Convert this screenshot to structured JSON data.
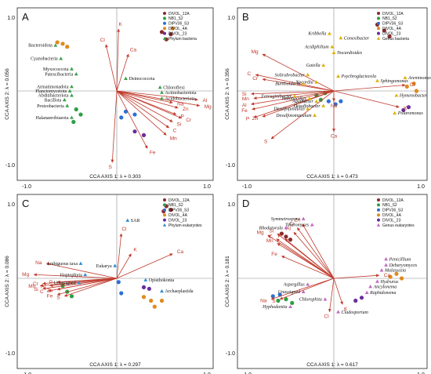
{
  "chart_data": [
    {
      "type": "scatter",
      "panel_label": "A",
      "xlabel": "CCA AXIS 1: λ = 0.303",
      "ylabel": "CCA AXIS 2: λ = 0.056",
      "xlim": [
        -1.0,
        1.0
      ],
      "ylim": [
        -1.0,
        1.0
      ],
      "ticks": {
        "xmin": "-1.0",
        "xmax": "1.0",
        "ymin": "-1.0",
        "ymax": "1.0"
      },
      "legend": [
        {
          "name": "DIVOL_12A",
          "color": "#8b2a2a",
          "marker": "circle"
        },
        {
          "name": "NB1_S2",
          "color": "#2e9e44",
          "marker": "circle"
        },
        {
          "name": "DIPV36_S3",
          "color": "#2f6fd1",
          "marker": "circle"
        },
        {
          "name": "DIVOL_4A",
          "color": "#e08a1e",
          "marker": "circle"
        },
        {
          "name": "DIVOL_23",
          "color": "#6a2d9c",
          "marker": "circle"
        },
        {
          "name": "Phylum bacteria",
          "color": "#3aa04a",
          "marker": "triangle"
        }
      ],
      "taxa_marker": "triangle",
      "taxa_color": "#3aa04a",
      "taxa_italic": false,
      "taxa": [
        {
          "name": "Bacteroidota",
          "x": -0.68,
          "y": 0.62
        },
        {
          "name": "Cyanobacteria",
          "x": -0.62,
          "y": 0.44
        },
        {
          "name": "Myxococcota",
          "x": -0.5,
          "y": 0.3
        },
        {
          "name": "Patescibacteria",
          "x": -0.45,
          "y": 0.23
        },
        {
          "name": "Armatimonadota",
          "x": -0.5,
          "y": 0.06
        },
        {
          "name": "Planctomycetota",
          "x": -0.52,
          "y": 0.0
        },
        {
          "name": "Abditibacteriota",
          "x": -0.5,
          "y": -0.06
        },
        {
          "name": "Bacillota",
          "x": -0.58,
          "y": -0.12
        },
        {
          "name": "Proteobacteria",
          "x": -0.55,
          "y": -0.2
        },
        {
          "name": "Halanaerobiaeota",
          "x": -0.5,
          "y": -0.36
        },
        {
          "name": "Deinococcota",
          "x": 0.1,
          "y": 0.17
        },
        {
          "name": "Chloroflexi",
          "x": 0.48,
          "y": 0.05
        },
        {
          "name": "Actinobacteriota",
          "x": 0.5,
          "y": -0.02
        },
        {
          "name": "Acidobacteriota",
          "x": 0.5,
          "y": -0.1
        }
      ],
      "samples": [
        {
          "x": -0.66,
          "y": 0.66,
          "c": "#e08a1e"
        },
        {
          "x": -0.6,
          "y": 0.64,
          "c": "#e08a1e"
        },
        {
          "x": -0.55,
          "y": 0.6,
          "c": "#e08a1e"
        },
        {
          "x": 0.62,
          "y": 0.85,
          "c": "#e08a1e"
        },
        {
          "x": 0.6,
          "y": 0.77,
          "c": "#8b2a2a"
        },
        {
          "x": 0.55,
          "y": 0.7,
          "c": "#8b2a2a"
        },
        {
          "x": 0.5,
          "y": 0.8,
          "c": "#8b2a2a"
        },
        {
          "x": 0.1,
          "y": -0.28,
          "c": "#2f6fd1"
        },
        {
          "x": 0.2,
          "y": -0.32,
          "c": "#2f6fd1"
        },
        {
          "x": 0.05,
          "y": -0.36,
          "c": "#2f6fd1"
        },
        {
          "x": -0.45,
          "y": -0.25,
          "c": "#2e9e44"
        },
        {
          "x": -0.4,
          "y": -0.32,
          "c": "#2e9e44"
        },
        {
          "x": -0.48,
          "y": -0.42,
          "c": "#2e9e44"
        },
        {
          "x": 0.2,
          "y": -0.55,
          "c": "#6a2d9c"
        },
        {
          "x": 0.3,
          "y": -0.6,
          "c": "#6a2d9c"
        }
      ],
      "vectors": [
        {
          "name": "K",
          "x": 0.02,
          "y": 0.84
        },
        {
          "name": "Cl",
          "x": -0.12,
          "y": 0.63
        },
        {
          "name": "Ca",
          "x": 0.13,
          "y": 0.5
        },
        {
          "name": "Na",
          "x": 0.62,
          "y": -0.16
        },
        {
          "name": "Al",
          "x": 0.9,
          "y": -0.12
        },
        {
          "name": "Zn",
          "x": 0.68,
          "y": -0.23
        },
        {
          "name": "Mg",
          "x": 0.92,
          "y": -0.2
        },
        {
          "name": "P",
          "x": 0.66,
          "y": -0.32
        },
        {
          "name": "Cr",
          "x": 0.72,
          "y": -0.37
        },
        {
          "name": "Si",
          "x": 0.62,
          "y": -0.42
        },
        {
          "name": "C",
          "x": 0.58,
          "y": -0.5
        },
        {
          "name": "Mn",
          "x": 0.55,
          "y": -0.6
        },
        {
          "name": "Fe",
          "x": 0.34,
          "y": -0.78
        },
        {
          "name": "S",
          "x": -0.05,
          "y": -0.97
        }
      ]
    },
    {
      "type": "scatter",
      "panel_label": "B",
      "xlabel": "CCA AXIS 1: λ = 0.473",
      "ylabel": "CCA AXIS 2: λ = 0.356",
      "xlim": [
        -1.0,
        1.0
      ],
      "ylim": [
        -1.0,
        1.0
      ],
      "ticks": {
        "xmin": "-1.0",
        "xmax": "1.0",
        "ymin": "-1.0",
        "ymax": "1.0"
      },
      "legend": [
        {
          "name": "DIVOL_12A",
          "color": "#8b2a2a",
          "marker": "circle"
        },
        {
          "name": "NB1_S2",
          "color": "#2e9e44",
          "marker": "circle"
        },
        {
          "name": "DIPV36_S3",
          "color": "#2f6fd1",
          "marker": "circle"
        },
        {
          "name": "DIVOL_4A",
          "color": "#e08a1e",
          "marker": "circle"
        },
        {
          "name": "DIVOL_23",
          "color": "#6a2d9c",
          "marker": "circle"
        },
        {
          "name": "Genus bacteria",
          "color": "#e0b000",
          "marker": "triangle"
        }
      ],
      "taxa_marker": "triangle",
      "taxa_color": "#e0b000",
      "taxa_italic": true,
      "taxa": [
        {
          "name": "Kribbella",
          "x": -0.05,
          "y": 0.78
        },
        {
          "name": "Conexibacter",
          "x": 0.08,
          "y": 0.72
        },
        {
          "name": "Acidiphilium",
          "x": -0.02,
          "y": 0.6
        },
        {
          "name": "Nocardioides",
          "x": 0.0,
          "y": 0.52
        },
        {
          "name": "Gaiella",
          "x": -0.12,
          "y": 0.35
        },
        {
          "name": "Solirubrobacter",
          "x": -0.3,
          "y": 0.22
        },
        {
          "name": "Psychroglaciecola",
          "x": 0.05,
          "y": 0.2
        },
        {
          "name": "Nocardia",
          "x": -0.2,
          "y": 0.12
        },
        {
          "name": "Burkholderia",
          "x": -0.35,
          "y": 0.1
        },
        {
          "name": "Sphingomonas",
          "x": 0.5,
          "y": 0.14
        },
        {
          "name": "Arenimonas",
          "x": 0.82,
          "y": 0.18
        },
        {
          "name": "Ferruginibacter",
          "x": -0.45,
          "y": -0.07
        },
        {
          "name": "Hymenobacter",
          "x": 0.72,
          "y": -0.06
        },
        {
          "name": "Halobacillus",
          "x": -0.28,
          "y": -0.1
        },
        {
          "name": "Aquibacter",
          "x": -0.2,
          "y": -0.14
        },
        {
          "name": "Desulfobacter",
          "x": -0.12,
          "y": -0.2
        },
        {
          "name": "Desulfofundulus",
          "x": -0.3,
          "y": -0.24
        },
        {
          "name": "Desulfotomaculum",
          "x": -0.22,
          "y": -0.33
        },
        {
          "name": "Polaromonas",
          "x": 0.7,
          "y": -0.3
        }
      ],
      "samples": [
        {
          "x": 0.5,
          "y": 0.9,
          "c": "#8b2a2a"
        },
        {
          "x": 0.58,
          "y": 0.82,
          "c": "#8b2a2a"
        },
        {
          "x": 0.64,
          "y": 0.74,
          "c": "#8b2a2a"
        },
        {
          "x": 0.84,
          "y": 0.06,
          "c": "#e08a1e"
        },
        {
          "x": 0.92,
          "y": 0.1,
          "c": "#e08a1e"
        },
        {
          "x": 0.95,
          "y": 0.0,
          "c": "#e08a1e"
        },
        {
          "x": -0.06,
          "y": -0.14,
          "c": "#2f6fd1"
        },
        {
          "x": 0.02,
          "y": -0.18,
          "c": "#2f6fd1"
        },
        {
          "x": 0.08,
          "y": -0.14,
          "c": "#2f6fd1"
        },
        {
          "x": -0.2,
          "y": -0.06,
          "c": "#2e9e44"
        },
        {
          "x": -0.15,
          "y": -0.12,
          "c": "#2e9e44"
        },
        {
          "x": -0.1,
          "y": -0.03,
          "c": "#2e9e44"
        },
        {
          "x": 0.86,
          "y": -0.22,
          "c": "#6a2d9c"
        },
        {
          "x": 0.8,
          "y": -0.26,
          "c": "#6a2d9c"
        }
      ],
      "vectors": [
        {
          "name": "Mg",
          "x": -0.82,
          "y": 0.5
        },
        {
          "name": "C",
          "x": -0.9,
          "y": 0.22
        },
        {
          "name": "Cr",
          "x": -0.82,
          "y": 0.16
        },
        {
          "name": "Si",
          "x": -0.95,
          "y": -0.04
        },
        {
          "name": "Mn",
          "x": -0.92,
          "y": -0.1
        },
        {
          "name": "Al",
          "x": -0.95,
          "y": -0.18
        },
        {
          "name": "Fe",
          "x": -0.94,
          "y": -0.25
        },
        {
          "name": "P",
          "x": -0.92,
          "y": -0.36
        },
        {
          "name": "Zn",
          "x": -0.82,
          "y": -0.35
        },
        {
          "name": "S",
          "x": -0.72,
          "y": -0.65
        },
        {
          "name": "Cl",
          "x": 0.82,
          "y": 0.08
        },
        {
          "name": "K",
          "x": 0.75,
          "y": -0.22
        },
        {
          "name": "Na",
          "x": 0.0,
          "y": -0.14
        },
        {
          "name": "Ca",
          "x": 0.0,
          "y": -0.55
        }
      ]
    },
    {
      "type": "scatter",
      "panel_label": "C",
      "xlabel": "CCA AXIS 1: λ = 0.297",
      "ylabel": "CCA AXIS 2: λ = 0.086",
      "xlim": [
        -1.0,
        1.0
      ],
      "ylim": [
        -1.0,
        1.0
      ],
      "ticks": {
        "xmin": "-1.0",
        "xmax": "1.0",
        "ymin": "-1.0",
        "ymax": "1.0"
      },
      "legend": [
        {
          "name": "DIVOL_12A",
          "color": "#8b2a2a",
          "marker": "circle"
        },
        {
          "name": "NB1_S2",
          "color": "#2e9e44",
          "marker": "circle"
        },
        {
          "name": "DIPV36_S3",
          "color": "#2f6fd1",
          "marker": "circle"
        },
        {
          "name": "DIVOL_4A",
          "color": "#e08a1e",
          "marker": "circle"
        },
        {
          "name": "DIVOL_23",
          "color": "#6a2d9c",
          "marker": "circle"
        },
        {
          "name": "Phylum eukaryotes",
          "color": "#2f8fd6",
          "marker": "triangle"
        }
      ],
      "taxa_marker": "triangle",
      "taxa_color": "#2f8fd6",
      "taxa_italic": false,
      "taxa": [
        {
          "name": "SAR",
          "x": 0.12,
          "y": 0.78
        },
        {
          "name": "Ambiguous taxa",
          "x": -0.4,
          "y": 0.2
        },
        {
          "name": "Eukarya",
          "x": -0.02,
          "y": 0.17
        },
        {
          "name": "Haptophyta",
          "x": -0.35,
          "y": 0.05
        },
        {
          "name": "Unassigned",
          "x": -0.42,
          "y": -0.06
        },
        {
          "name": "Opisthokonta",
          "x": 0.32,
          "y": -0.02
        },
        {
          "name": "Archaeplastida",
          "x": 0.5,
          "y": -0.17
        }
      ],
      "samples": [
        {
          "x": 0.55,
          "y": 0.97,
          "c": "#8b2a2a"
        },
        {
          "x": 0.6,
          "y": 0.92,
          "c": "#8b2a2a"
        },
        {
          "x": 0.52,
          "y": 0.9,
          "c": "#8b2a2a"
        },
        {
          "x": 0.3,
          "y": -0.25,
          "c": "#e08a1e"
        },
        {
          "x": 0.38,
          "y": -0.3,
          "c": "#e08a1e"
        },
        {
          "x": 0.42,
          "y": -0.38,
          "c": "#e08a1e"
        },
        {
          "x": 0.5,
          "y": -0.3,
          "c": "#e08a1e"
        },
        {
          "x": 0.05,
          "y": -0.2,
          "c": "#2f6fd1"
        },
        {
          "x": 0.02,
          "y": -0.05,
          "c": "#2f6fd1"
        },
        {
          "x": -0.6,
          "y": -0.1,
          "c": "#2e9e44"
        },
        {
          "x": -0.55,
          "y": -0.18,
          "c": "#2e9e44"
        },
        {
          "x": -0.5,
          "y": -0.24,
          "c": "#2e9e44"
        },
        {
          "x": 0.3,
          "y": -0.12,
          "c": "#6a2d9c"
        },
        {
          "x": 0.36,
          "y": -0.14,
          "c": "#6a2d9c"
        }
      ],
      "vectors": [
        {
          "name": "Cl",
          "x": 0.05,
          "y": 0.6
        },
        {
          "name": "K",
          "x": 0.16,
          "y": 0.33
        },
        {
          "name": "Ca",
          "x": 0.62,
          "y": 0.33
        },
        {
          "name": "Na",
          "x": -0.78,
          "y": 0.2
        },
        {
          "name": "Mg",
          "x": -0.92,
          "y": 0.05
        },
        {
          "name": "P",
          "x": -0.66,
          "y": -0.05
        },
        {
          "name": "Cr",
          "x": -0.82,
          "y": -0.07
        },
        {
          "name": "Mn",
          "x": -0.85,
          "y": -0.1
        },
        {
          "name": "Al",
          "x": -0.74,
          "y": -0.1
        },
        {
          "name": "Si",
          "x": -0.82,
          "y": -0.14
        },
        {
          "name": "C",
          "x": -0.76,
          "y": -0.17
        },
        {
          "name": "Zn",
          "x": -0.66,
          "y": -0.15
        },
        {
          "name": "Fe",
          "x": -0.66,
          "y": -0.22
        },
        {
          "name": "S",
          "x": -0.58,
          "y": -0.24
        }
      ]
    },
    {
      "type": "scatter",
      "panel_label": "D",
      "xlabel": "CCA AXIS 1: λ = 0.617",
      "ylabel": "CCA AXIS 2: λ = 0.181",
      "xlim": [
        -1.0,
        1.0
      ],
      "ylim": [
        -1.0,
        1.0
      ],
      "ticks": {
        "xmin": "-1.0",
        "xmax": "1.0",
        "ymin": "-1.0",
        "ymax": "1.0"
      },
      "legend": [
        {
          "name": "DIVOL_12A",
          "color": "#8b2a2a",
          "marker": "circle"
        },
        {
          "name": "NB1_S2",
          "color": "#2e9e44",
          "marker": "circle"
        },
        {
          "name": "DIPV36_S3",
          "color": "#2f6fd1",
          "marker": "circle"
        },
        {
          "name": "DIVOL_4A",
          "color": "#e08a1e",
          "marker": "circle"
        },
        {
          "name": "DIVOL_23",
          "color": "#6a2d9c",
          "marker": "circle"
        },
        {
          "name": "Genus eukaryotes",
          "color": "#c06ac0",
          "marker": "triangle"
        }
      ],
      "taxa_marker": "triangle",
      "taxa_color": "#c06ac0",
      "taxa_italic": true,
      "taxa": [
        {
          "name": "Symmetrospora",
          "x": -0.35,
          "y": 0.8
        },
        {
          "name": "Talaromyces",
          "x": -0.25,
          "y": 0.72
        },
        {
          "name": "Rhodotorula",
          "x": -0.55,
          "y": 0.68
        },
        {
          "name": "Aspergillus",
          "x": -0.3,
          "y": -0.08
        },
        {
          "name": "Unassigned",
          "x": -0.35,
          "y": -0.18
        },
        {
          "name": "Chlorophita",
          "x": -0.1,
          "y": -0.28
        },
        {
          "name": "Hyphodontia",
          "x": -0.5,
          "y": -0.38
        },
        {
          "name": "Cladosporium",
          "x": 0.05,
          "y": -0.45
        },
        {
          "name": "Penicillium",
          "x": 0.6,
          "y": 0.26
        },
        {
          "name": "Debaryomyces",
          "x": 0.6,
          "y": 0.18
        },
        {
          "name": "Malassezia",
          "x": 0.55,
          "y": 0.11
        },
        {
          "name": "Hydrurus",
          "x": 0.5,
          "y": -0.04
        },
        {
          "name": "Ancylonema",
          "x": 0.42,
          "y": -0.11
        },
        {
          "name": "Raphidonema",
          "x": 0.38,
          "y": -0.19
        }
      ],
      "samples": [
        {
          "x": -0.6,
          "y": 0.6,
          "c": "#8b2a2a"
        },
        {
          "x": -0.55,
          "y": 0.56,
          "c": "#8b2a2a"
        },
        {
          "x": -0.5,
          "y": 0.52,
          "c": "#8b2a2a"
        },
        {
          "x": 0.65,
          "y": 0.02,
          "c": "#e08a1e"
        },
        {
          "x": 0.72,
          "y": 0.06,
          "c": "#e08a1e"
        },
        {
          "x": 0.78,
          "y": 0.0,
          "c": "#e08a1e"
        },
        {
          "x": -0.7,
          "y": -0.24,
          "c": "#2f6fd1"
        },
        {
          "x": -0.62,
          "y": -0.22,
          "c": "#2f6fd1"
        },
        {
          "x": -0.55,
          "y": -0.28,
          "c": "#2e9e44"
        },
        {
          "x": -0.64,
          "y": -0.3,
          "c": "#2e9e44"
        },
        {
          "x": -0.48,
          "y": -0.33,
          "c": "#2e9e44"
        },
        {
          "x": 0.25,
          "y": -0.3,
          "c": "#6a2d9c"
        },
        {
          "x": 0.32,
          "y": -0.26,
          "c": "#6a2d9c"
        }
      ],
      "vectors": [
        {
          "name": "Cr",
          "x": -0.42,
          "y": 0.68
        },
        {
          "name": "Zn",
          "x": -0.36,
          "y": 0.73
        },
        {
          "name": "Al",
          "x": -0.46,
          "y": 0.62
        },
        {
          "name": "Si",
          "x": -0.65,
          "y": 0.6
        },
        {
          "name": "Mg",
          "x": -0.76,
          "y": 0.58
        },
        {
          "name": "C",
          "x": -0.66,
          "y": 0.53
        },
        {
          "name": "P",
          "x": -0.56,
          "y": 0.53
        },
        {
          "name": "Mn",
          "x": -0.65,
          "y": 0.47
        },
        {
          "name": "Fe",
          "x": -0.6,
          "y": 0.3
        },
        {
          "name": "Ca",
          "x": 0.52,
          "y": 0.04
        },
        {
          "name": "Na",
          "x": -0.72,
          "y": -0.28
        },
        {
          "name": "S",
          "x": -0.62,
          "y": -0.28
        },
        {
          "name": "K",
          "x": 0.1,
          "y": -0.35
        },
        {
          "name": "Cl",
          "x": -0.05,
          "y": -0.45
        }
      ]
    }
  ]
}
